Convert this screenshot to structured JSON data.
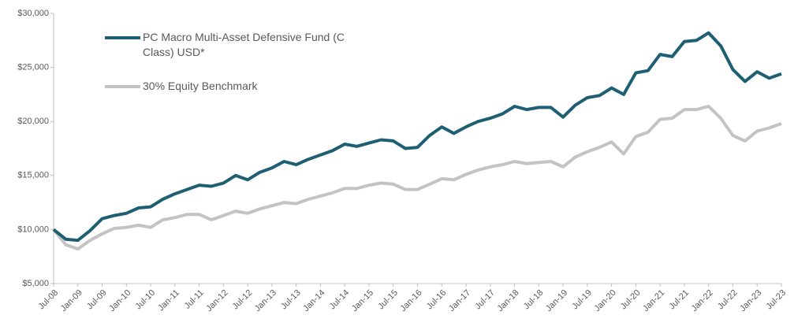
{
  "chart_data": {
    "type": "line",
    "categories": [
      "Jul-08",
      null,
      "Jan-09",
      null,
      "Jul-09",
      null,
      "Jan-10",
      null,
      "Jul-10",
      null,
      "Jan-11",
      null,
      "Jul-11",
      null,
      "Jan-12",
      null,
      "Jul-12",
      null,
      "Jan-13",
      null,
      "Jul-13",
      null,
      "Jan-14",
      null,
      "Jul-14",
      null,
      "Jan-15",
      null,
      "Jul-15",
      null,
      "Jan-16",
      null,
      "Jul-16",
      null,
      "Jan-17",
      null,
      "Jul-17",
      null,
      "Jan-18",
      null,
      "Jul-18",
      null,
      "Jan-19",
      null,
      "Jul-19",
      null,
      "Jan-20",
      null,
      "Jul-20",
      null,
      "Jan-21",
      null,
      "Jul-21",
      null,
      "Jan-22",
      null,
      "Jul-22",
      null,
      "Jan-23",
      null,
      "Jul-23"
    ],
    "series": [
      {
        "name": "PC Macro Multi-Asset Defensive  Fund (C Class) USD*",
        "color": "#1f5f73",
        "values": [
          10000,
          9100,
          9000,
          9900,
          11000,
          11300,
          11500,
          12000,
          12100,
          12800,
          13300,
          13700,
          14100,
          14000,
          14300,
          15000,
          14600,
          15300,
          15700,
          16300,
          16000,
          16500,
          16900,
          17300,
          17900,
          17700,
          18000,
          18300,
          18200,
          17500,
          17600,
          18700,
          19500,
          18900,
          19500,
          20000,
          20300,
          20700,
          21400,
          21100,
          21300,
          21300,
          20400,
          21500,
          22200,
          22400,
          23100,
          22500,
          24500,
          24700,
          26200,
          26000,
          27400,
          27500,
          28200,
          27000,
          24800,
          23700,
          24600,
          24000,
          24400
        ]
      },
      {
        "name": "30% Equity Benchmark",
        "color": "#c3c3c3",
        "values": [
          10000,
          8600,
          8200,
          9000,
          9600,
          10100,
          10200,
          10400,
          10200,
          10900,
          11100,
          11400,
          11400,
          10900,
          11300,
          11700,
          11500,
          11900,
          12200,
          12500,
          12400,
          12800,
          13100,
          13400,
          13800,
          13800,
          14100,
          14300,
          14200,
          13700,
          13700,
          14200,
          14700,
          14600,
          15100,
          15500,
          15800,
          16000,
          16300,
          16100,
          16200,
          16300,
          15800,
          16700,
          17200,
          17600,
          18100,
          17000,
          18600,
          19000,
          20200,
          20300,
          21100,
          21100,
          21400,
          20300,
          18700,
          18200,
          19100,
          19400,
          19800
        ]
      }
    ],
    "ylim": [
      5000,
      30000
    ],
    "yticks": [
      {
        "value": 5000,
        "label": "$5,000"
      },
      {
        "value": 10000,
        "label": "$10,000"
      },
      {
        "value": 15000,
        "label": "$15,000"
      },
      {
        "value": 20000,
        "label": "$20,000"
      },
      {
        "value": 25000,
        "label": "$25,000"
      },
      {
        "value": 30000,
        "label": "$30,000"
      }
    ],
    "grid": false
  }
}
